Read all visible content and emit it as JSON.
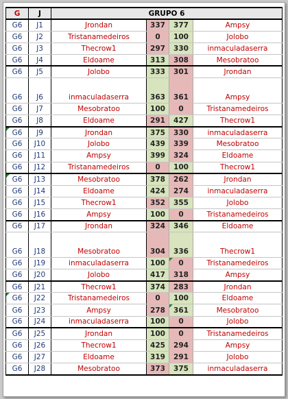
{
  "table": {
    "header": {
      "col_g": "G",
      "col_j": "J",
      "title": "GRUPO 6"
    },
    "rows": [
      {
        "g": "G6",
        "j": "J1",
        "home": "Jrondan",
        "hs": "337",
        "as": "377",
        "away": "Ampsy"
      },
      {
        "g": "G6",
        "j": "J2",
        "home": "Tristanamedeiros",
        "hs": "0",
        "as": "100",
        "away": "Jolobo"
      },
      {
        "g": "G6",
        "j": "J3",
        "home": "Thecrow1",
        "hs": "297",
        "as": "330",
        "away": "inmaculadaserra"
      },
      {
        "g": "G6",
        "j": "J4",
        "home": "Eldoame",
        "hs": "313",
        "as": "308",
        "away": "Mesobratoo"
      },
      {
        "g": "G6",
        "j": "J5",
        "home": "Jolobo",
        "hs": "333",
        "as": "301",
        "away": "Jrondan"
      },
      {
        "g": "G6",
        "j": "J6",
        "home": "inmaculadaserra",
        "hs": "363",
        "as": "361",
        "away": "Ampsy"
      },
      {
        "g": "G6",
        "j": "J7",
        "home": "Mesobratoo",
        "hs": "100",
        "as": "0",
        "away": "Tristanamedeiros"
      },
      {
        "g": "G6",
        "j": "J8",
        "home": "Eldoame",
        "hs": "291",
        "as": "427",
        "away": "Thecrow1"
      },
      {
        "g": "G6",
        "j": "J9",
        "home": "Jrondan",
        "hs": "375",
        "as": "330",
        "away": "inmaculadaserra"
      },
      {
        "g": "G6",
        "j": "J10",
        "home": "Jolobo",
        "hs": "439",
        "as": "339",
        "away": "Mesobratoo"
      },
      {
        "g": "G6",
        "j": "J11",
        "home": "Ampsy",
        "hs": "399",
        "as": "324",
        "away": "Eldoame"
      },
      {
        "g": "G6",
        "j": "J12",
        "home": "Tristanamedeiros",
        "hs": "0",
        "as": "100",
        "away": "Thecrow1"
      },
      {
        "g": "G6",
        "j": "J13",
        "home": "Mesobratoo",
        "hs": "378",
        "as": "262",
        "away": "Jrondan"
      },
      {
        "g": "G6",
        "j": "J14",
        "home": "Eldoame",
        "hs": "424",
        "as": "274",
        "away": "inmaculadaserra"
      },
      {
        "g": "G6",
        "j": "J15",
        "home": "Thecrow1",
        "hs": "352",
        "as": "355",
        "away": "Jolobo"
      },
      {
        "g": "G6",
        "j": "J16",
        "home": "Ampsy",
        "hs": "100",
        "as": "0",
        "away": "Tristanamedeiros"
      },
      {
        "g": "G6",
        "j": "J17",
        "home": "Jrondan",
        "hs": "324",
        "as": "346",
        "away": "Eldoame"
      },
      {
        "g": "G6",
        "j": "J18",
        "home": "Mesobratoo",
        "hs": "304",
        "as": "336",
        "away": "Thecrow1"
      },
      {
        "g": "G6",
        "j": "J19",
        "home": "inmaculadaserra",
        "hs": "100",
        "as": "0",
        "away": "Tristanamedeiros"
      },
      {
        "g": "G6",
        "j": "J20",
        "home": "Jolobo",
        "hs": "417",
        "as": "318",
        "away": "Ampsy"
      },
      {
        "g": "G6",
        "j": "J21",
        "home": "Thecrow1",
        "hs": "374",
        "as": "283",
        "away": "Jrondan"
      },
      {
        "g": "G6",
        "j": "J22",
        "home": "Tristanamedeiros",
        "hs": "0",
        "as": "100",
        "away": "Eldoame"
      },
      {
        "g": "G6",
        "j": "J23",
        "home": "Ampsy",
        "hs": "278",
        "as": "361",
        "away": "Mesobratoo"
      },
      {
        "g": "G6",
        "j": "J24",
        "home": "inmaculadaserra",
        "hs": "100",
        "as": "0",
        "away": "Jolobo"
      },
      {
        "g": "G6",
        "j": "J25",
        "home": "Jrondan",
        "hs": "100",
        "as": "0",
        "away": "Tristanamedeiros"
      },
      {
        "g": "G6",
        "j": "J26",
        "home": "Thecrow1",
        "hs": "425",
        "as": "294",
        "away": "Ampsy"
      },
      {
        "g": "G6",
        "j": "J27",
        "home": "Eldoame",
        "hs": "319",
        "as": "291",
        "away": "Jolobo"
      },
      {
        "g": "G6",
        "j": "J28",
        "home": "Mesobratoo",
        "hs": "373",
        "as": "375",
        "away": "inmaculadaserra"
      }
    ]
  },
  "colors": {
    "win": "#d7e4bd",
    "loss": "#e6b9b8",
    "team_text": "#c00000",
    "id_text": "#1f3a78"
  }
}
